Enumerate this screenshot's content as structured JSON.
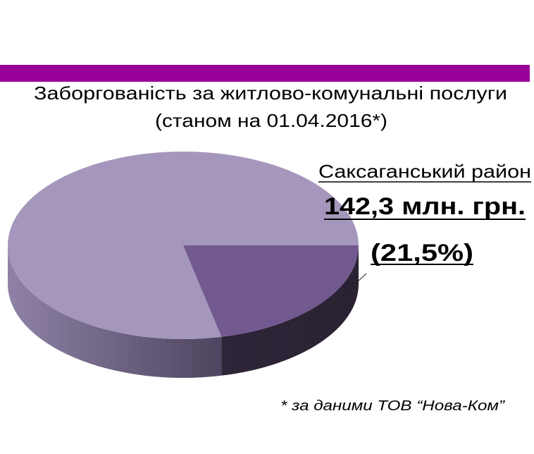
{
  "slide": {
    "accent_bar_color": "#990099",
    "title_line1": "Заборгованість за житлово-комунальні послуги",
    "title_line2": "(станом на 01.04.2016*)",
    "footnote": "* за даними ТОВ “Нова-Ком”"
  },
  "chart_data": {
    "type": "pie",
    "style": "3d",
    "slices": [
      {
        "name": "Саксаганський район",
        "percent": 21.5,
        "value_label": "142,3 млн. грн.",
        "percent_label": "(21,5%)",
        "color": "#725990"
      },
      {
        "percent": 78.5,
        "color": "#A597BC"
      }
    ],
    "label": {
      "district": "Саксаганський район",
      "amount": "142,3 млн. грн.",
      "percent": "(21,5%)"
    }
  }
}
